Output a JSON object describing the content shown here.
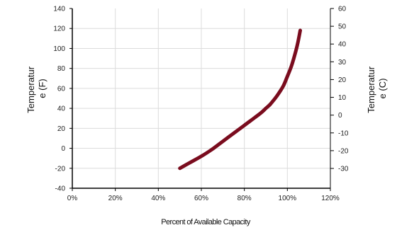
{
  "chart_data": {
    "type": "line",
    "xlabel": "Percent of Available Capacity",
    "ylabel_left": [
      "Temperatur",
      "e (F)"
    ],
    "ylabel_right": [
      "Temperatur",
      "e (C)"
    ],
    "x_ticks": [
      "0%",
      "20%",
      "40%",
      "60%",
      "80%",
      "100%",
      "120%"
    ],
    "xlim": [
      0,
      120
    ],
    "y_ticks_left": [
      "-40",
      "-20",
      "0",
      "20",
      "40",
      "60",
      "80",
      "100",
      "120",
      "140"
    ],
    "ylim_left": [
      -40,
      140
    ],
    "y_ticks_right": [
      "-30",
      "-20",
      "-10",
      "0",
      "10",
      "20",
      "30",
      "40",
      "50",
      "60"
    ],
    "grid": true,
    "line_color": "#7a0c1e",
    "series": [
      {
        "x": [
          50,
          55,
          60,
          65,
          70,
          75,
          80,
          85,
          88,
          90,
          92,
          95,
          98,
          100,
          102,
          104,
          105,
          106
        ],
        "y": [
          -20,
          -14,
          -8,
          -1,
          7,
          15,
          23,
          31,
          36,
          40,
          44,
          52,
          62,
          72,
          83,
          98,
          107,
          118
        ]
      }
    ]
  }
}
